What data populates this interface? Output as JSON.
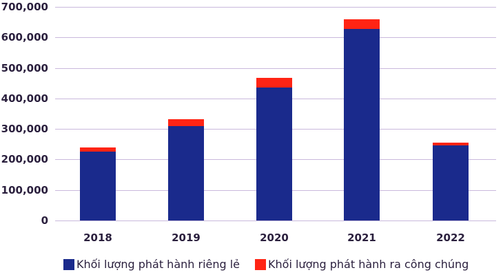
{
  "chart_data": {
    "type": "bar",
    "stacked": true,
    "title": "",
    "xlabel": "",
    "ylabel": "",
    "categories": [
      "2018",
      "2019",
      "2020",
      "2021",
      "2022"
    ],
    "series": [
      {
        "name": "Khối lượng phát hành riêng lẻ",
        "color": "#1a2a8c",
        "values": [
          225000,
          310000,
          436000,
          628000,
          246000
        ]
      },
      {
        "name": "Khối lượng phát hành ra công chúng",
        "color": "#ff2414",
        "values": [
          14000,
          22000,
          31000,
          31000,
          9000
        ]
      }
    ],
    "ylim": [
      0,
      700000
    ],
    "yticks": [
      "0",
      "100,000",
      "200,000",
      "300,000",
      "400,000",
      "500,000",
      "600,000",
      "700,000"
    ],
    "grid": true,
    "legend_position": "bottom"
  },
  "legend": {
    "items": [
      {
        "label": "Khối lượng phát hành riêng lẻ",
        "color": "#1a2a8c"
      },
      {
        "label": "Khối lượng phát hành ra công chúng",
        "color": "#ff2414"
      }
    ]
  }
}
